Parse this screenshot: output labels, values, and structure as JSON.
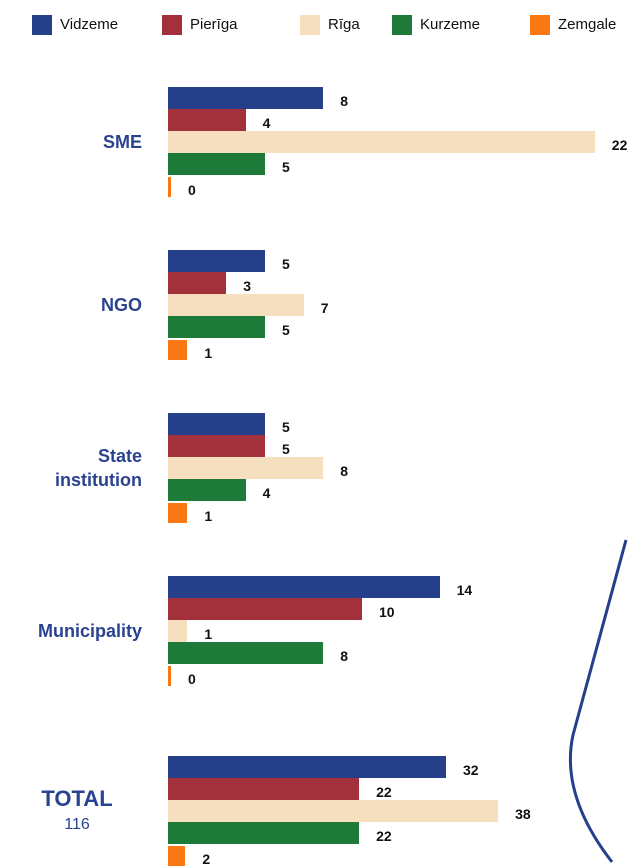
{
  "chart_data": [
    {
      "type": "bar",
      "orientation": "horizontal",
      "categories": [
        "SME",
        "NGO",
        "State institution",
        "Municipality"
      ],
      "xlim": [
        0,
        30
      ],
      "series": [
        {
          "name": "Vidzeme",
          "color": "#253f8a",
          "values": [
            8,
            5,
            5,
            14
          ]
        },
        {
          "name": "Pierīga",
          "color": "#a2313b",
          "values": [
            4,
            3,
            5,
            10
          ]
        },
        {
          "name": "Rīga",
          "color": "#f5dfbe",
          "values": [
            22,
            7,
            8,
            1
          ]
        },
        {
          "name": "Kurzeme",
          "color": "#1e7a38",
          "values": [
            5,
            5,
            4,
            8
          ]
        },
        {
          "name": "Zemgale",
          "color": "#fa7814",
          "values": [
            0,
            1,
            1,
            0
          ]
        }
      ]
    },
    {
      "type": "bar",
      "orientation": "horizontal",
      "categories": [
        "TOTAL"
      ],
      "annotation": "116",
      "xlim": [
        0,
        67
      ],
      "series": [
        {
          "color": "#253f8a",
          "values": [
            32
          ]
        },
        {
          "color": "#a2313b",
          "values": [
            22
          ]
        },
        {
          "color": "#f5dfbe",
          "values": [
            38
          ]
        },
        {
          "color": "#1e7a38",
          "values": [
            22
          ]
        },
        {
          "color": "#fa7814",
          "values": [
            2
          ]
        }
      ]
    }
  ]
}
